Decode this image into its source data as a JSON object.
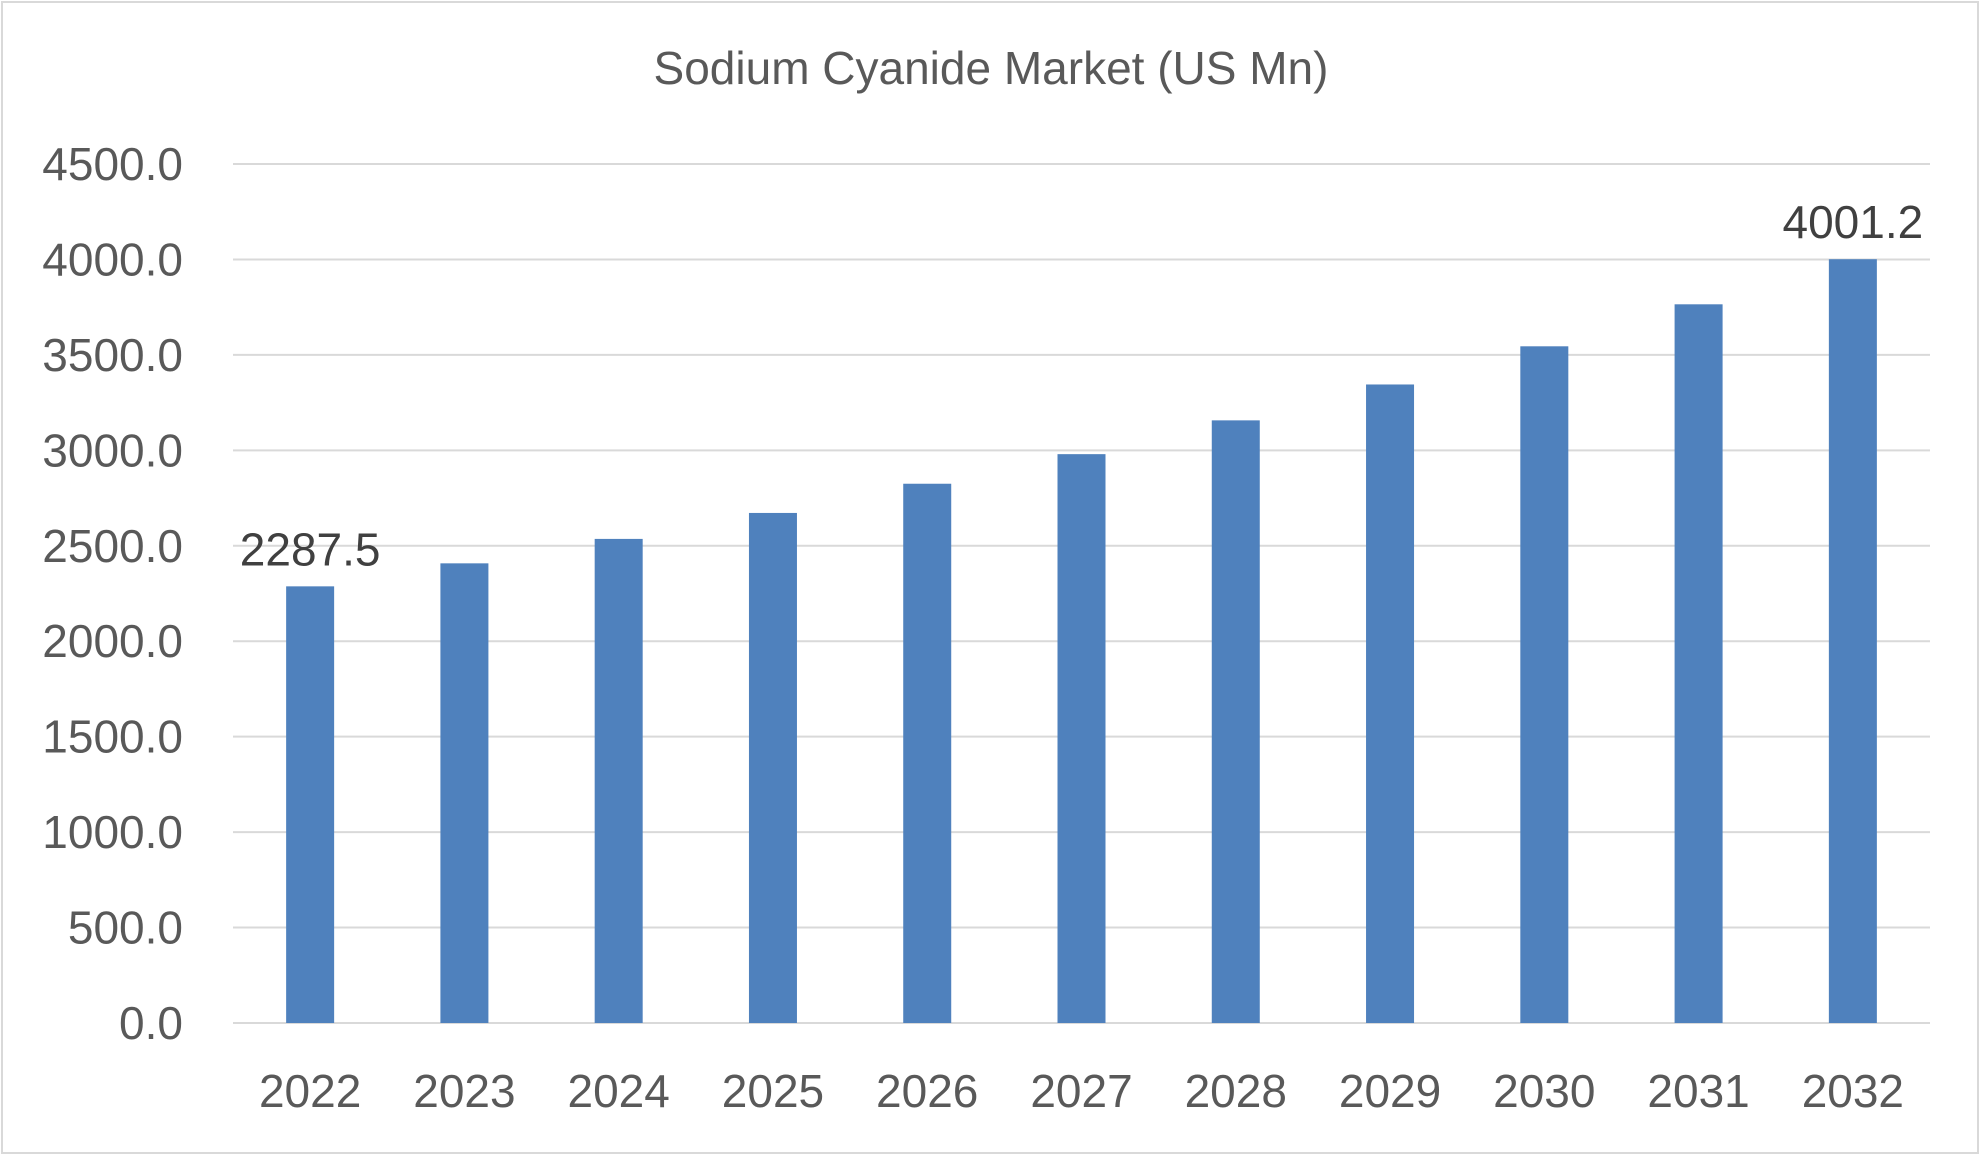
{
  "chart_data": {
    "type": "bar",
    "title": "Sodium Cyanide Market (US Mn)",
    "xlabel": "",
    "ylabel": "",
    "categories": [
      "2022",
      "2023",
      "2024",
      "2025",
      "2026",
      "2027",
      "2028",
      "2029",
      "2030",
      "2031",
      "2032"
    ],
    "values": [
      2287.5,
      2408.0,
      2536.0,
      2672.0,
      2825.0,
      2980.0,
      3157.0,
      3345.0,
      3545.0,
      3765.0,
      4001.2
    ],
    "ylim": [
      0,
      4500
    ],
    "yticks": [
      "0.0",
      "500.0",
      "1000.0",
      "1500.0",
      "2000.0",
      "2500.0",
      "3000.0",
      "3500.0",
      "4000.0",
      "4500.0"
    ],
    "data_labels": [
      {
        "category": "2022",
        "text": "2287.5"
      },
      {
        "category": "2032",
        "text": "4001.2"
      }
    ],
    "grid": true,
    "legend": "none",
    "bar_color": "#4f81bd"
  }
}
